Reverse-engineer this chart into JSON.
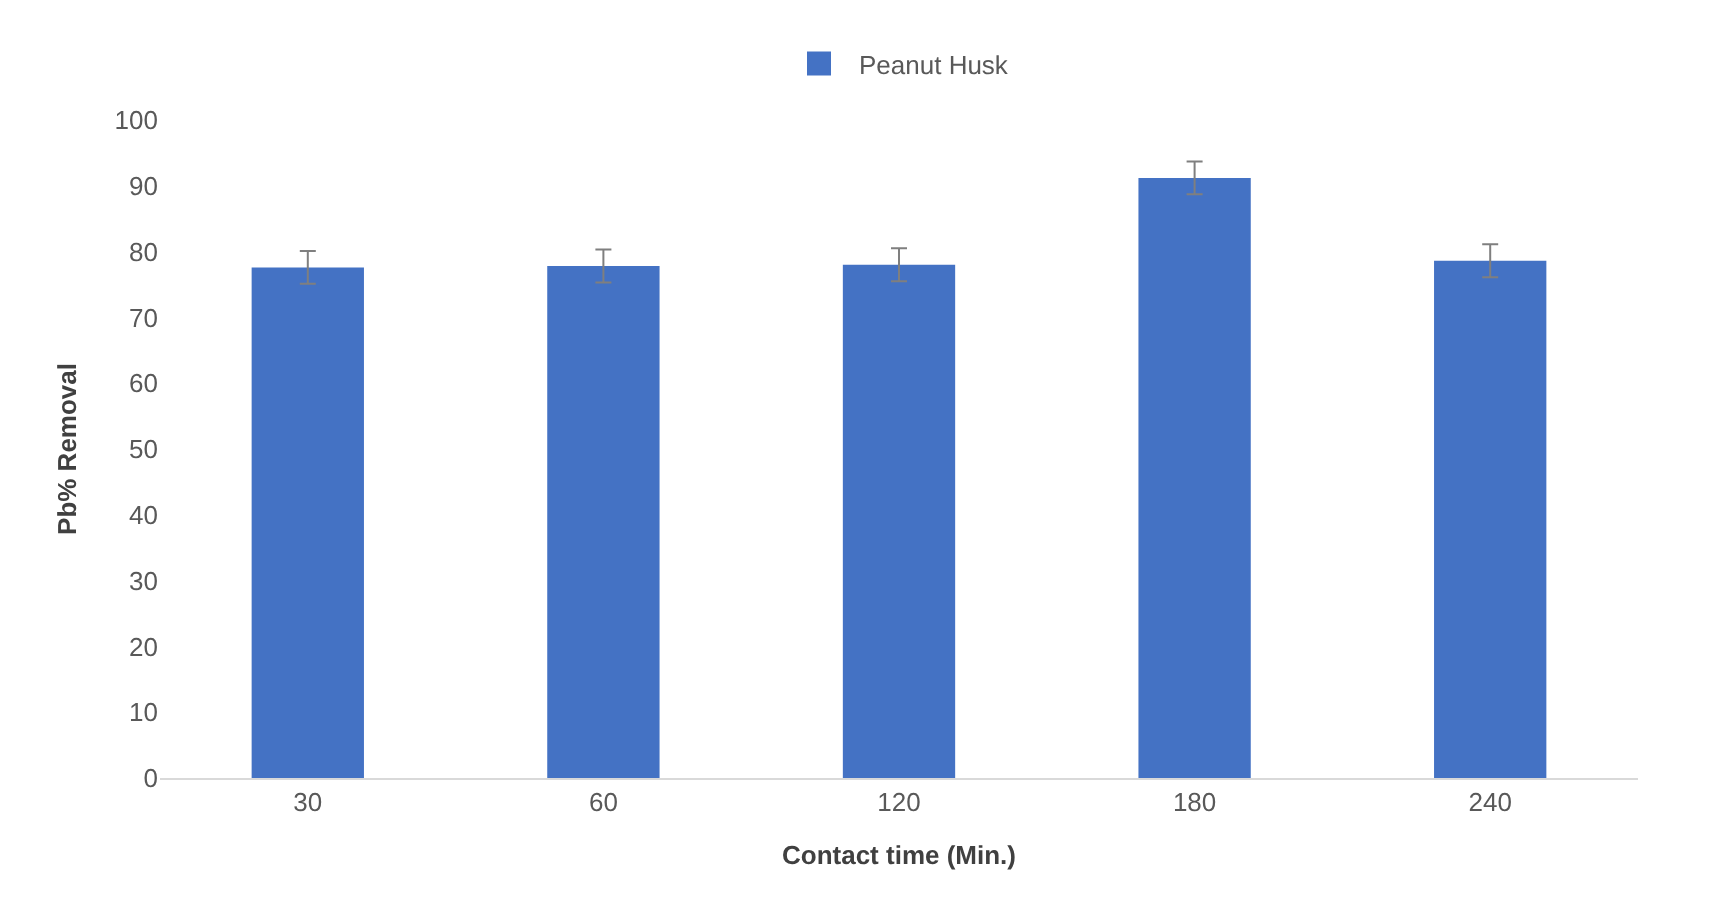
{
  "chart_data": {
    "type": "bar",
    "xlabel": "Contact time (Min.)",
    "ylabel": "Pb% Removal",
    "categories": [
      "30",
      "60",
      "120",
      "180",
      "240"
    ],
    "series": [
      {
        "name": "Peanut Husk",
        "color": "#4472c4",
        "values": [
          77.6,
          77.8,
          78.0,
          91.2,
          78.6
        ],
        "errors": [
          2.5,
          2.5,
          2.5,
          2.5,
          2.5
        ]
      }
    ],
    "ylim": [
      0,
      100
    ],
    "yticks": [
      0,
      10,
      20,
      30,
      40,
      50,
      60,
      70,
      80,
      90,
      100
    ],
    "grid": false,
    "legend": "top"
  }
}
